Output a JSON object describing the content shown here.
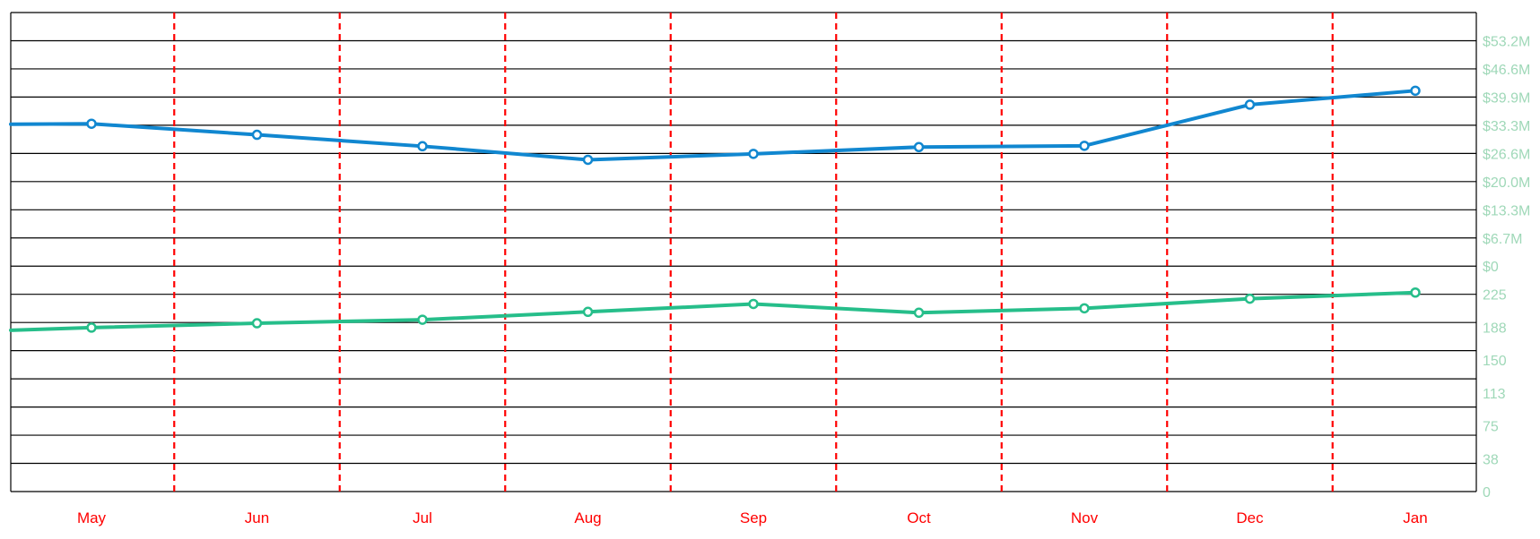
{
  "chart_data": {
    "type": "line",
    "categories": [
      "May",
      "Jun",
      "Jul",
      "Aug",
      "Sep",
      "Oct",
      "Nov",
      "Dec",
      "Jan"
    ],
    "upper_panel": {
      "y_ticks": [
        "$0",
        "$6.7M",
        "$13.3M",
        "$20.0M",
        "$26.6M",
        "$33.3M",
        "$39.9M",
        "$46.6M",
        "$53.2M"
      ],
      "ylim": [
        0,
        53.2
      ],
      "unit": "$M",
      "series": [
        {
          "color": "#1187d0",
          "start_value": 33.5,
          "values": [
            33.6,
            31.0,
            28.3,
            25.1,
            26.5,
            28.1,
            28.4,
            38.1,
            41.4
          ]
        }
      ]
    },
    "lower_panel": {
      "y_ticks": [
        "0",
        "38",
        "75",
        "113",
        "150",
        "188",
        "225"
      ],
      "ylim": [
        0,
        225
      ],
      "series": [
        {
          "color": "#26be8a",
          "start_value": 184,
          "values": [
            187,
            192,
            196,
            205,
            214,
            204,
            209,
            220,
            227
          ]
        }
      ]
    },
    "grid": true,
    "vertical_dividers_color": "#ff0000",
    "x_tick_color": "#ff0000",
    "y_tick_color": "#9fd8b8"
  }
}
